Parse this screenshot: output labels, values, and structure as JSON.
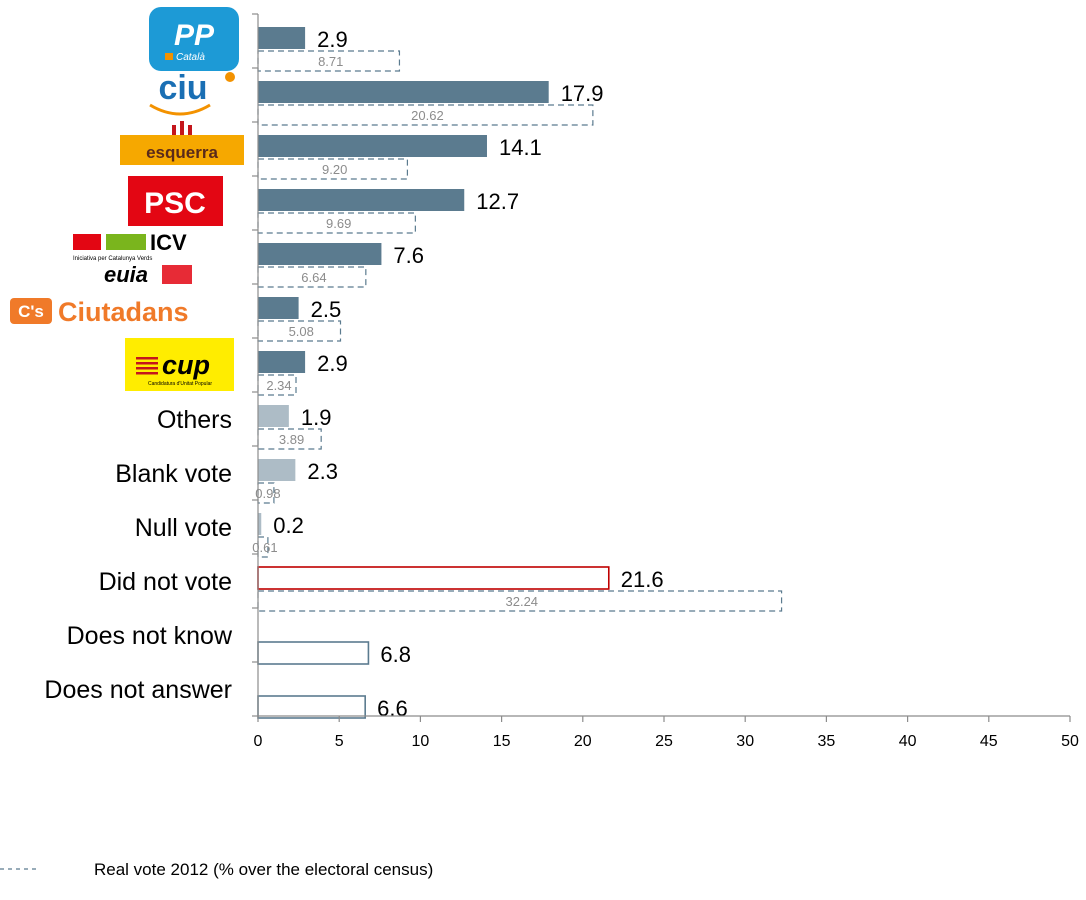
{
  "chart_data": {
    "type": "bar",
    "orientation": "horizontal",
    "categories": [
      "PP Català",
      "CiU",
      "Esquerra",
      "PSC",
      "ICV-EUiA",
      "Ciutadans",
      "CUP",
      "Others",
      "Blank vote",
      "Null vote",
      "Did not vote",
      "Does not know",
      "Does not answer"
    ],
    "category_display": [
      {
        "kind": "logo",
        "logo": "pp-logo",
        "text": "PP",
        "subtext": "Català",
        "color": "#1d9ad6"
      },
      {
        "kind": "logo",
        "logo": "ciu-logo",
        "text": "ciu",
        "color": "#1a6fb4",
        "accent": "#f39200"
      },
      {
        "kind": "logo",
        "logo": "esquerra-logo",
        "text": "esquerra",
        "color": "#f6a800"
      },
      {
        "kind": "logo",
        "logo": "psc-logo",
        "text": "PSC",
        "color": "#e30613"
      },
      {
        "kind": "logo",
        "logo": "icv-euia-logo",
        "text": "ICV",
        "subtext": "Iniciativa per Catalunya Verds",
        "text2": "euia",
        "color": "#e30613"
      },
      {
        "kind": "logo",
        "logo": "ciutadans-logo",
        "text": "Ciutadans",
        "badge": "C's",
        "color": "#f07a29"
      },
      {
        "kind": "logo",
        "logo": "cup-logo",
        "text": "cup",
        "subtext": "Candidatura d'Unitat Popular",
        "color": "#ffed00"
      },
      {
        "kind": "text",
        "text": "Others"
      },
      {
        "kind": "text",
        "text": "Blank vote"
      },
      {
        "kind": "text",
        "text": "Null vote"
      },
      {
        "kind": "text",
        "text": "Did not vote"
      },
      {
        "kind": "text",
        "text": "Does not know"
      },
      {
        "kind": "text",
        "text": "Does not answer"
      }
    ],
    "series": [
      {
        "name": "",
        "values": [
          2.9,
          17.9,
          14.1,
          12.7,
          7.6,
          2.5,
          2.9,
          1.9,
          2.3,
          0.2,
          21.6,
          6.8,
          6.6
        ],
        "labels": [
          "2.9",
          "17.9",
          "14.1",
          "12.7",
          "7.6",
          "2.5",
          "2.9",
          "1.9",
          "2.3",
          "0.2",
          "21.6",
          "6.8",
          "6.6"
        ],
        "styles": [
          "party",
          "party",
          "party",
          "party",
          "party",
          "party",
          "party",
          "other",
          "other",
          "other",
          "nonvote",
          "outline",
          "outline"
        ]
      },
      {
        "name": "Real vote 2012 (% over the electoral census)",
        "values": [
          8.71,
          20.62,
          9.2,
          9.69,
          6.64,
          5.08,
          2.34,
          3.89,
          0.98,
          0.61,
          32.24,
          null,
          null
        ],
        "labels": [
          "8.71",
          "20.62",
          "9.20",
          "9.69",
          "6.64",
          "5.08",
          "2.34",
          "3.89",
          "0.98",
          "0.61",
          "32.24",
          "",
          ""
        ],
        "style": "dashed"
      }
    ],
    "x_ticks": [
      "0",
      "5",
      "10",
      "15",
      "20",
      "25",
      "30",
      "35",
      "40",
      "45",
      "50"
    ],
    "xlim": [
      0,
      50
    ],
    "xlabel": "",
    "ylabel": "",
    "title": "",
    "grid": false,
    "legend_position": "bottom-left",
    "colors": {
      "party": "#5b7b8f",
      "other": "#adbcc6",
      "outline": "#5b7b8f",
      "nonvote": "#c00000",
      "real_vote": "#5b7b8f",
      "real_label": "#8c8c8c",
      "axis": "#8c8c8c"
    }
  }
}
